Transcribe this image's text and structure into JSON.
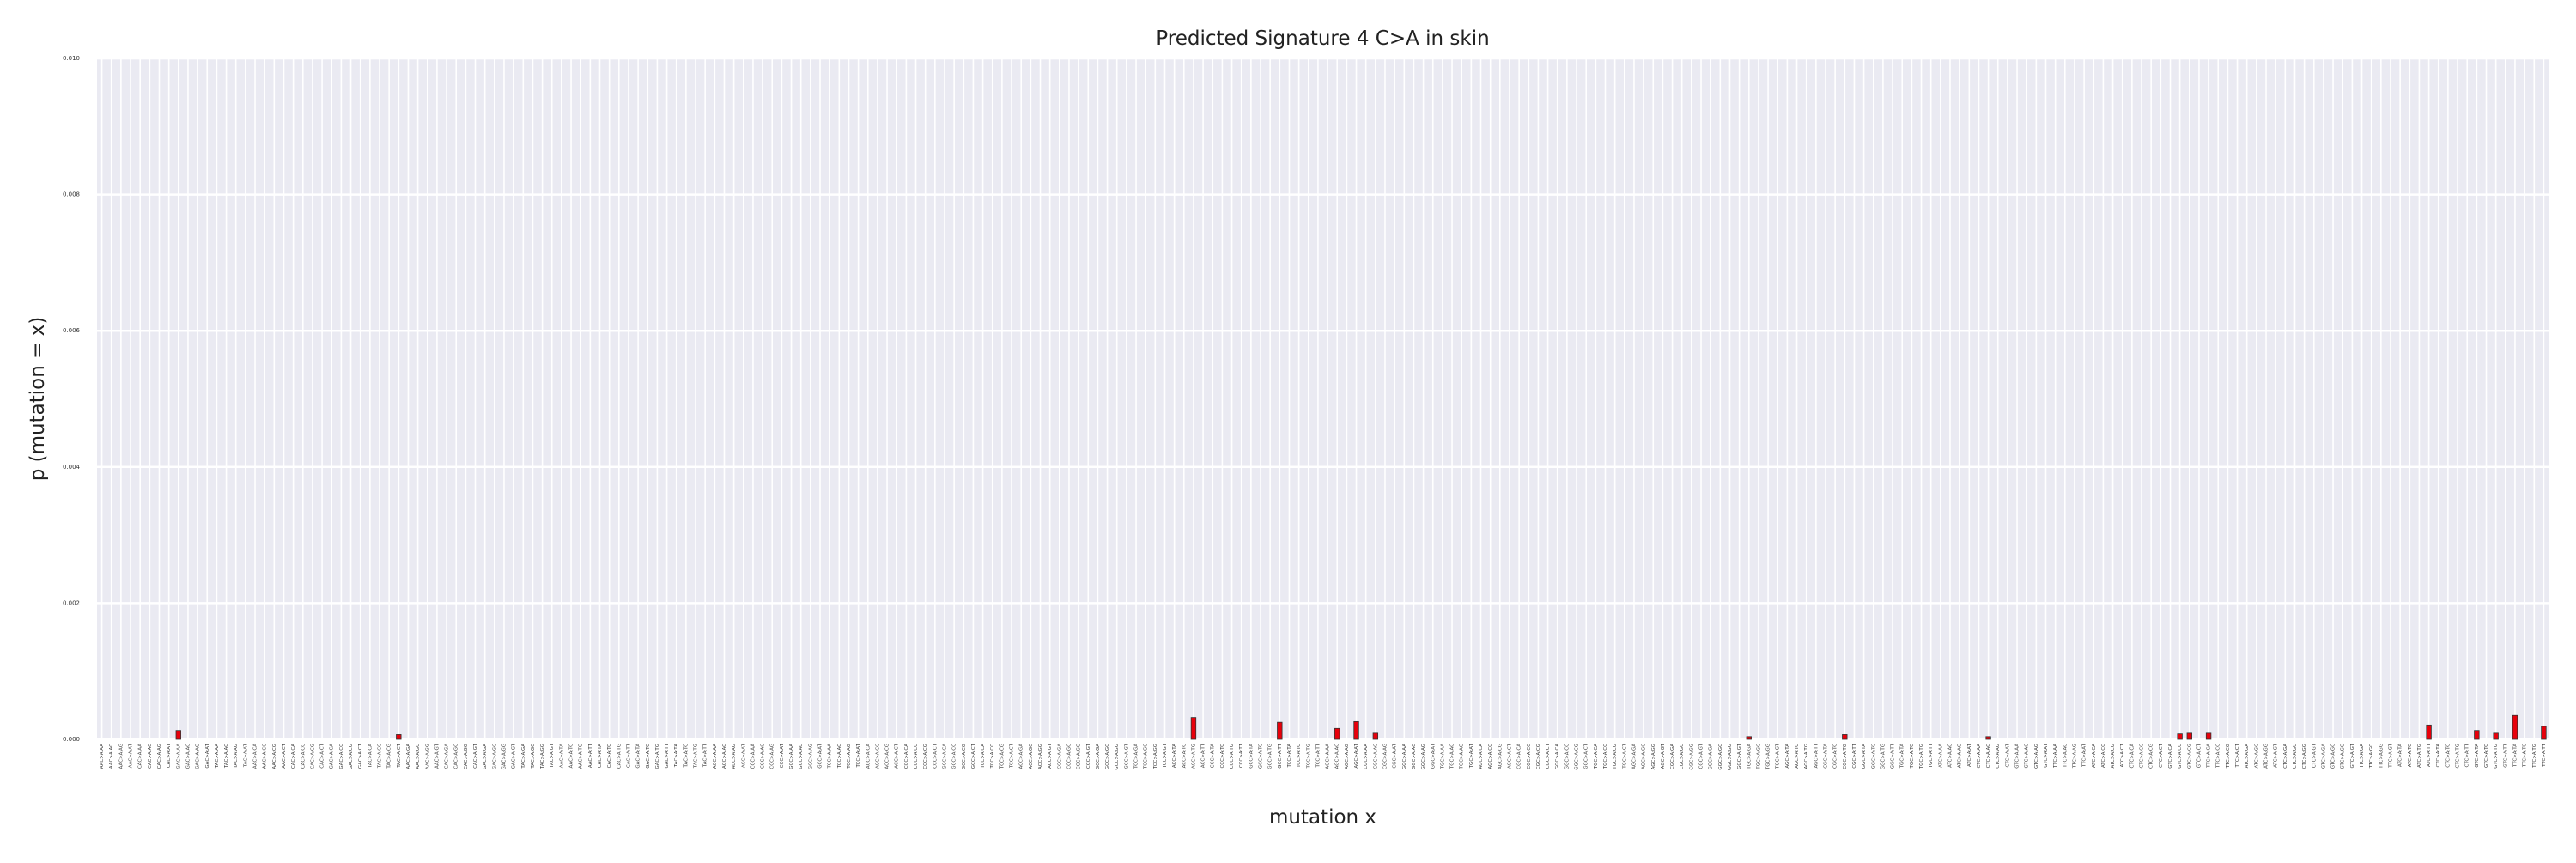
{
  "chart_data": {
    "type": "bar",
    "title": "Predicted Signature 4 C>A in skin",
    "xlabel": "mutation x",
    "ylabel": "p (mutation = x)",
    "ylim": [
      0,
      0.01
    ],
    "yticks": [
      "0.000",
      "0.002",
      "0.004",
      "0.006",
      "0.008",
      "0.010"
    ],
    "grid": true,
    "bar_color": "#e8000b",
    "background_color": "#eaeaf2",
    "grid_color": "#ffffff",
    "categories": [
      "AAC>A:AA",
      "AAC>A:AC",
      "AAC>A:AG",
      "AAC>A:AT",
      "CAC>A:AA",
      "CAC>A:AC",
      "CAC>A:AG",
      "CAC>A:AT",
      "GAC>A:AA",
      "GAC>A:AC",
      "GAC>A:AG",
      "GAC>A:AT",
      "TAC>A:AA",
      "TAC>A:AC",
      "TAC>A:AG",
      "TAC>A:AT",
      "AAC>A:CA",
      "AAC>A:CC",
      "AAC>A:CG",
      "AAC>A:CT",
      "CAC>A:CA",
      "CAC>A:CC",
      "CAC>A:CG",
      "CAC>A:CT",
      "GAC>A:CA",
      "GAC>A:CC",
      "GAC>A:CG",
      "GAC>A:CT",
      "TAC>A:CA",
      "TAC>A:CC",
      "TAC>A:CG",
      "TAC>A:CT",
      "AAC>A:GA",
      "AAC>A:GC",
      "AAC>A:GG",
      "AAC>A:GT",
      "CAC>A:GA",
      "CAC>A:GC",
      "CAC>A:GG",
      "CAC>A:GT",
      "GAC>A:GA",
      "GAC>A:GC",
      "GAC>A:GG",
      "GAC>A:GT",
      "TAC>A:GA",
      "TAC>A:GC",
      "TAC>A:GG",
      "TAC>A:GT",
      "AAC>A:TA",
      "AAC>A:TC",
      "AAC>A:TG",
      "AAC>A:TT",
      "CAC>A:TA",
      "CAC>A:TC",
      "CAC>A:TG",
      "CAC>A:TT",
      "GAC>A:TA",
      "GAC>A:TC",
      "GAC>A:TG",
      "GAC>A:TT",
      "TAC>A:TA",
      "TAC>A:TC",
      "TAC>A:TG",
      "TAC>A:TT",
      "ACC>A:AA",
      "ACC>A:AC",
      "ACC>A:AG",
      "ACC>A:AT",
      "CCC>A:AA",
      "CCC>A:AC",
      "CCC>A:AG",
      "CCC>A:AT",
      "GCC>A:AA",
      "GCC>A:AC",
      "GCC>A:AG",
      "GCC>A:AT",
      "TCC>A:AA",
      "TCC>A:AC",
      "TCC>A:AG",
      "TCC>A:AT",
      "ACC>A:CA",
      "ACC>A:CC",
      "ACC>A:CG",
      "ACC>A:CT",
      "CCC>A:CA",
      "CCC>A:CC",
      "CCC>A:CG",
      "CCC>A:CT",
      "GCC>A:CA",
      "GCC>A:CC",
      "GCC>A:CG",
      "GCC>A:CT",
      "TCC>A:CA",
      "TCC>A:CC",
      "TCC>A:CG",
      "TCC>A:CT",
      "ACC>A:GA",
      "ACC>A:GC",
      "ACC>A:GG",
      "ACC>A:GT",
      "CCC>A:GA",
      "CCC>A:GC",
      "CCC>A:GG",
      "CCC>A:GT",
      "GCC>A:GA",
      "GCC>A:GC",
      "GCC>A:GG",
      "GCC>A:GT",
      "TCC>A:GA",
      "TCC>A:GC",
      "TCC>A:GG",
      "TCC>A:GT",
      "ACC>A:TA",
      "ACC>A:TC",
      "ACC>A:TG",
      "ACC>A:TT",
      "CCC>A:TA",
      "CCC>A:TC",
      "CCC>A:TG",
      "CCC>A:TT",
      "GCC>A:TA",
      "GCC>A:TC",
      "GCC>A:TG",
      "GCC>A:TT",
      "TCC>A:TA",
      "TCC>A:TC",
      "TCC>A:TG",
      "TCC>A:TT",
      "AGC>A:AA",
      "AGC>A:AC",
      "AGC>A:AG",
      "AGC>A:AT",
      "CGC>A:AA",
      "CGC>A:AC",
      "CGC>A:AG",
      "CGC>A:AT",
      "GGC>A:AA",
      "GGC>A:AC",
      "GGC>A:AG",
      "GGC>A:AT",
      "TGC>A:AA",
      "TGC>A:AC",
      "TGC>A:AG",
      "TGC>A:AT",
      "AGC>A:CA",
      "AGC>A:CC",
      "AGC>A:CG",
      "AGC>A:CT",
      "CGC>A:CA",
      "CGC>A:CC",
      "CGC>A:CG",
      "CGC>A:CT",
      "GGC>A:CA",
      "GGC>A:CC",
      "GGC>A:CG",
      "GGC>A:CT",
      "TGC>A:CA",
      "TGC>A:CC",
      "TGC>A:CG",
      "TGC>A:CT",
      "AGC>A:GA",
      "AGC>A:GC",
      "AGC>A:GG",
      "AGC>A:GT",
      "CGC>A:GA",
      "CGC>A:GC",
      "CGC>A:GG",
      "CGC>A:GT",
      "GGC>A:GA",
      "GGC>A:GC",
      "GGC>A:GG",
      "GGC>A:GT",
      "TGC>A:GA",
      "TGC>A:GC",
      "TGC>A:GG",
      "TGC>A:GT",
      "AGC>A:TA",
      "AGC>A:TC",
      "AGC>A:TG",
      "AGC>A:TT",
      "CGC>A:TA",
      "CGC>A:TC",
      "CGC>A:TG",
      "CGC>A:TT",
      "GGC>A:TA",
      "GGC>A:TC",
      "GGC>A:TG",
      "GGC>A:TT",
      "TGC>A:TA",
      "TGC>A:TC",
      "TGC>A:TG",
      "TGC>A:TT",
      "ATC>A:AA",
      "ATC>A:AC",
      "ATC>A:AG",
      "ATC>A:AT",
      "CTC>A:AA",
      "CTC>A:AC",
      "CTC>A:AG",
      "CTC>A:AT",
      "GTC>A:AA",
      "GTC>A:AC",
      "GTC>A:AG",
      "GTC>A:AT",
      "TTC>A:AA",
      "TTC>A:AC",
      "TTC>A:AG",
      "TTC>A:AT",
      "ATC>A:CA",
      "ATC>A:CC",
      "ATC>A:CG",
      "ATC>A:CT",
      "CTC>A:CA",
      "CTC>A:CC",
      "CTC>A:CG",
      "CTC>A:CT",
      "GTC>A:CA",
      "GTC>A:CC",
      "GTC>A:CG",
      "GTC>A:CT",
      "TTC>A:CA",
      "TTC>A:CC",
      "TTC>A:CG",
      "TTC>A:CT",
      "ATC>A:GA",
      "ATC>A:GC",
      "ATC>A:GG",
      "ATC>A:GT",
      "CTC>A:GA",
      "CTC>A:GC",
      "CTC>A:GG",
      "CTC>A:GT",
      "GTC>A:GA",
      "GTC>A:GC",
      "GTC>A:GG",
      "GTC>A:GT",
      "TTC>A:GA",
      "TTC>A:GC",
      "TTC>A:GG",
      "TTC>A:GT",
      "ATC>A:TA",
      "ATC>A:TC",
      "ATC>A:TG",
      "ATC>A:TT",
      "CTC>A:TA",
      "CTC>A:TC",
      "CTC>A:TG",
      "CTC>A:TT",
      "GTC>A:TA",
      "GTC>A:TC",
      "GTC>A:TG",
      "GTC>A:TT",
      "TTC>A:TA",
      "TTC>A:TC",
      "TTC>A:TG",
      "TTC>A:TT"
    ],
    "values": [
      0,
      0,
      0,
      0,
      0,
      0,
      0,
      0,
      0.00013,
      0,
      0,
      0,
      0,
      0,
      0,
      0,
      0,
      0,
      0,
      0,
      0,
      0,
      0,
      0,
      0,
      0,
      0,
      0,
      0,
      0,
      0,
      7e-05,
      0,
      0,
      0,
      0,
      0,
      0,
      0,
      0,
      0,
      0,
      0,
      0,
      0,
      0,
      0,
      0,
      0,
      0,
      0,
      0,
      0,
      0,
      0,
      0,
      0,
      0,
      0,
      0,
      0,
      0,
      0,
      0,
      0,
      0,
      0,
      0,
      0,
      0,
      0,
      0,
      0,
      0,
      0,
      0,
      0,
      0,
      0,
      0,
      0,
      0,
      0,
      0,
      0,
      0,
      0,
      0,
      0,
      0,
      0,
      0,
      0,
      0,
      0,
      0,
      0,
      0,
      0,
      0,
      0,
      0,
      0,
      0,
      0,
      0,
      0,
      0,
      0,
      0,
      0,
      0,
      0,
      0,
      0.00032,
      0,
      0,
      0,
      0,
      0,
      0,
      0,
      0,
      0.00025,
      0,
      0,
      0,
      0,
      0,
      0.00016,
      0,
      0.00026,
      0,
      9e-05,
      0,
      0,
      0,
      0,
      0,
      0,
      0,
      0,
      0,
      0,
      0,
      0,
      0,
      0,
      0,
      0,
      0,
      0,
      0,
      0,
      0,
      0,
      0,
      0,
      0,
      0,
      0,
      0,
      0,
      0,
      0,
      0,
      0,
      0,
      0,
      0,
      0,
      0,
      4e-05,
      0,
      0,
      0,
      0,
      0,
      0,
      0,
      0,
      0,
      7e-05,
      0,
      0,
      0,
      0,
      0,
      0,
      0,
      0,
      0,
      0,
      0,
      0,
      0,
      0,
      4e-05,
      0,
      0,
      0,
      0,
      0,
      0,
      0,
      0,
      0,
      0,
      0,
      0,
      0,
      0,
      0,
      0,
      0,
      0,
      0,
      8e-05,
      9e-05,
      0,
      9e-05,
      0,
      0,
      0,
      0,
      0,
      0,
      0,
      0,
      0,
      0,
      0,
      0,
      0,
      0,
      0,
      0,
      0,
      0,
      0,
      0,
      0,
      0,
      0.00021,
      0,
      0,
      0,
      0,
      0.00013,
      0,
      9e-05,
      0,
      0.00035,
      0,
      0,
      0.00019
    ]
  }
}
